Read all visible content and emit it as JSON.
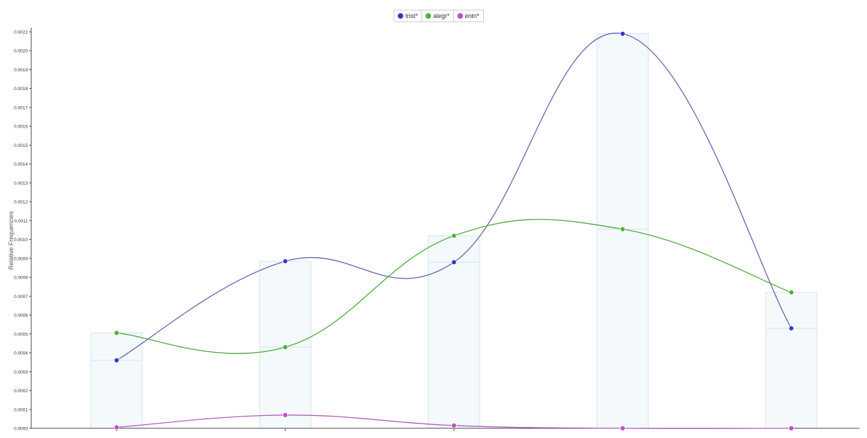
{
  "colors": {
    "trist": "#2c3fc4",
    "alegr": "#4db43a",
    "entri": "#c44cc9",
    "trist_line": "#6a5fb0",
    "alegr_line": "#4aa83a",
    "entri_line": "#b15bbd",
    "bar_fill": "#f4f9fc",
    "bar_stroke": "#d3e3ee"
  },
  "legend": [
    {
      "label": "trist*",
      "color_key": "trist"
    },
    {
      "label": "alegr*",
      "color_key": "alegr"
    },
    {
      "label": "entri*",
      "color_key": "entri"
    }
  ],
  "chart_data": {
    "type": "line",
    "title": "",
    "ylabel": "Relative Frequencies",
    "xlabel": "",
    "ylim": [
      0,
      0.0021
    ],
    "yticks": [
      "0.0000",
      "0.0001",
      "0.0002",
      "0.0003",
      "0.0004",
      "0.0005",
      "0.0006",
      "0.0007",
      "0.0008",
      "0.0009",
      "0.0010",
      "0.0011",
      "0.0012",
      "0.0013",
      "0.0014",
      "0.0015",
      "0.0016",
      "0.0017",
      "0.0018",
      "0.0019",
      "0.0020",
      "0.0021"
    ],
    "grid": false,
    "legend_position": "top-center",
    "categories": [
      "",
      "",
      "",
      "",
      ""
    ],
    "series": [
      {
        "name": "trist*",
        "values": [
          0.00036,
          0.000885,
          0.00088,
          0.00209,
          0.00053
        ]
      },
      {
        "name": "alegr*",
        "values": [
          0.000505,
          0.00043,
          0.00102,
          0.001055,
          0.00072
        ]
      },
      {
        "name": "entri*",
        "values": [
          5e-06,
          7e-05,
          1.5e-05,
          0.0,
          0.0
        ]
      }
    ]
  }
}
